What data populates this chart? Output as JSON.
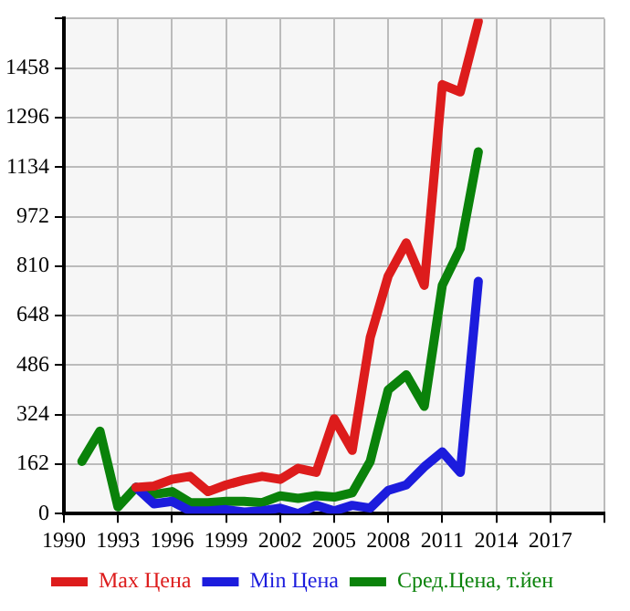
{
  "chart_data": {
    "type": "line",
    "x": [
      1991,
      1992,
      1993,
      1994,
      1995,
      1996,
      1997,
      1998,
      1999,
      2000,
      2001,
      2002,
      2003,
      2004,
      2005,
      2006,
      2007,
      2008,
      2009,
      2010,
      2011,
      2012,
      2013
    ],
    "series": [
      {
        "name": "Max Цена",
        "color": "#dd1c1c",
        "values": [
          null,
          null,
          null,
          86,
          90,
          112,
          122,
          72,
          94,
          110,
          122,
          112,
          148,
          135,
          310,
          207,
          576,
          778,
          886,
          747,
          1404,
          1380,
          1611
        ]
      },
      {
        "name": "Min Цена",
        "color": "#1c1cdd",
        "values": [
          null,
          null,
          null,
          86,
          32,
          40,
          9,
          9,
          13,
          5,
          9,
          18,
          0,
          27,
          9,
          27,
          18,
          76,
          94,
          153,
          202,
          135,
          760
        ]
      },
      {
        "name": "Сред.Цена, т.йен",
        "color": "#0a820a",
        "values": [
          171,
          270,
          22,
          86,
          63,
          72,
          36,
          36,
          40,
          40,
          36,
          58,
          50,
          59,
          54,
          68,
          171,
          405,
          454,
          351,
          747,
          868,
          1184
        ]
      }
    ],
    "xlim": [
      1990,
      2020
    ],
    "xticks": [
      1990,
      1993,
      1996,
      1999,
      2002,
      2005,
      2008,
      2011,
      2014,
      2017,
      {
        "value": 2020,
        "label": null
      }
    ],
    "ylim": [
      0,
      1620
    ],
    "yticks": [
      0,
      162,
      324,
      486,
      648,
      810,
      972,
      1134,
      1296,
      1458,
      {
        "value": 1620,
        "label": null
      }
    ],
    "grid": true,
    "legend": "bottom",
    "marker": "none",
    "line_style": "solid"
  }
}
